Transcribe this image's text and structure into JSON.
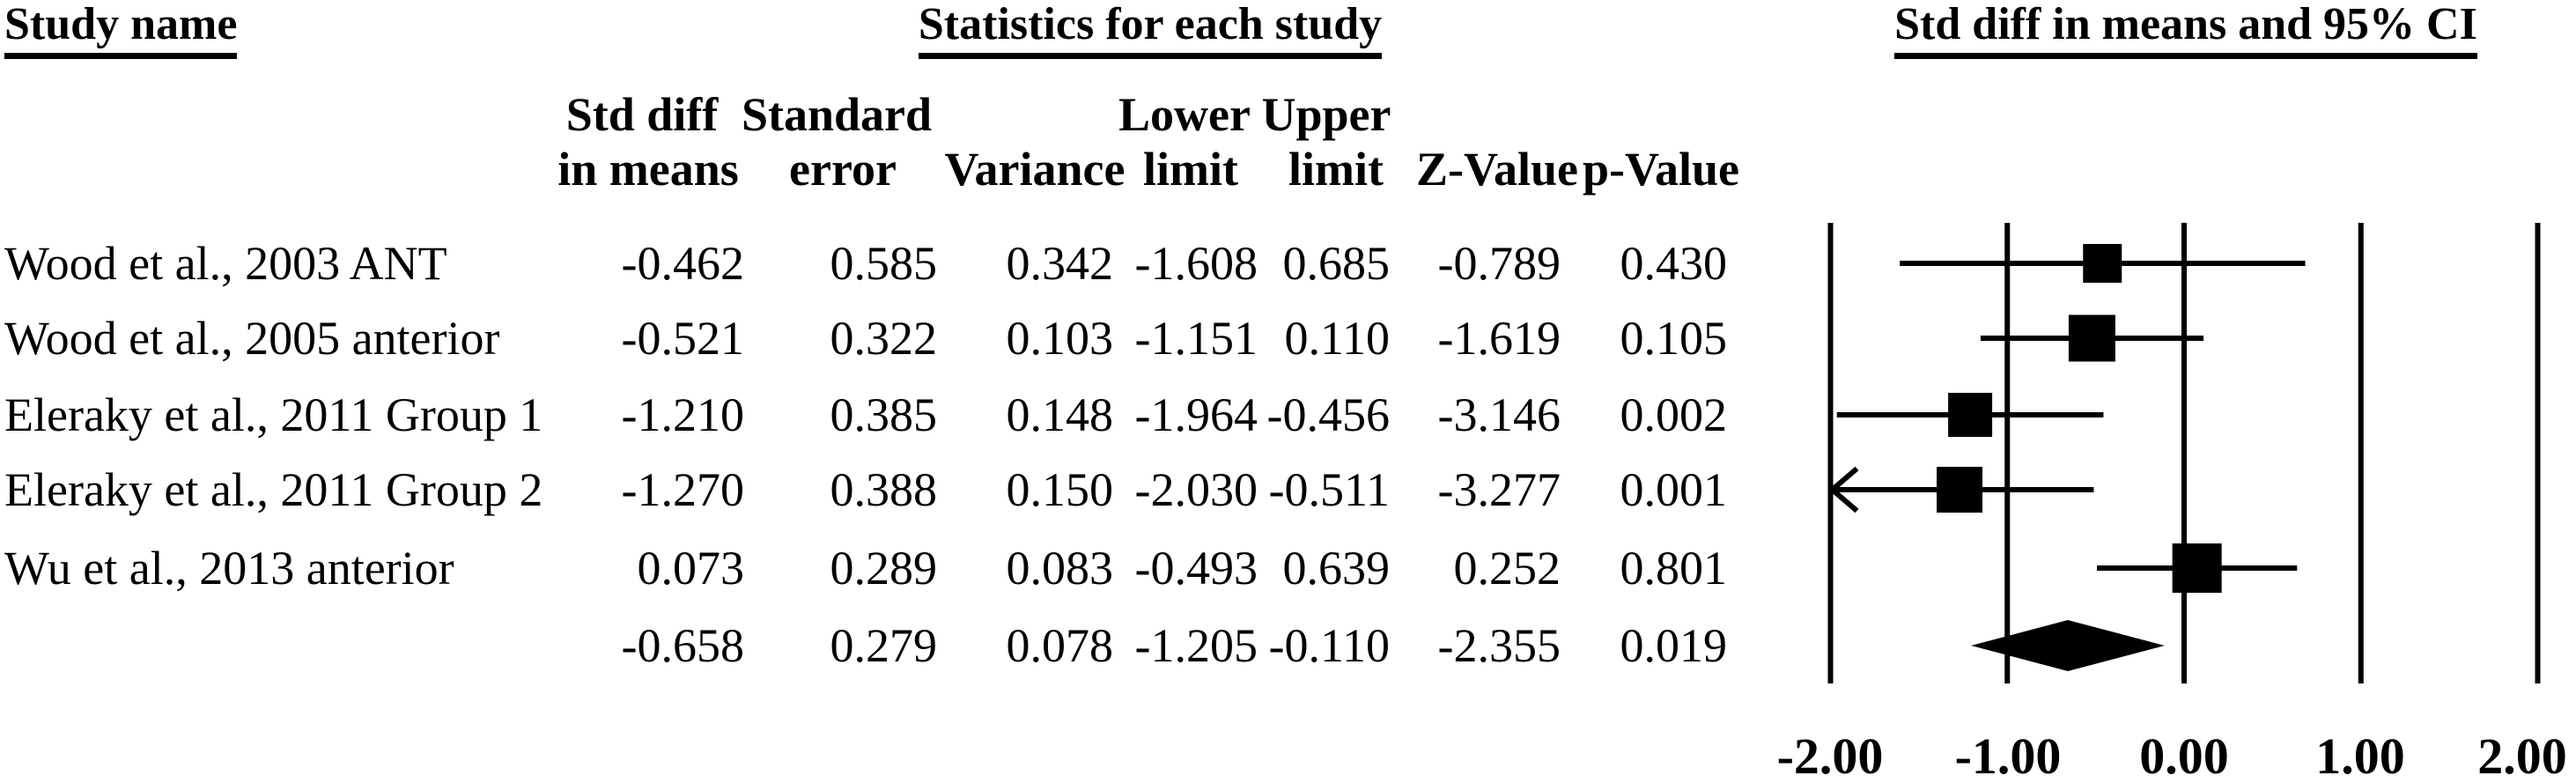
{
  "titles": {
    "study_name": "Study name",
    "statistics": "Statistics for each study",
    "ci_plot": "Std diff in means and 95% CI"
  },
  "table_headers": {
    "line1": [
      "Std diff",
      "Standard",
      "Lower",
      "Upper"
    ],
    "line2": [
      "in means",
      "error",
      "Variance",
      "limit",
      "limit",
      "Z-Value",
      "p-Value"
    ]
  },
  "chart_data": {
    "type": "forest",
    "title": "Std diff in means and 95% CI",
    "x_axis": {
      "min": -2.0,
      "max": 2.0,
      "tick_values": [
        -2,
        -1,
        0,
        1,
        2
      ],
      "tick_labels": [
        "-2.00",
        "-1.00",
        "0.00",
        "1.00",
        "2.00"
      ],
      "grid": true
    },
    "studies": [
      {
        "name": "Wood et al., 2003 ANT",
        "std_diff_in_means": "-0.462",
        "standard_error": "0.585",
        "variance": "0.342",
        "lower_limit": "-1.608",
        "upper_limit": "0.685",
        "z_value": "-0.789",
        "p_value": "0.430"
      },
      {
        "name": "Wood et al., 2005 anterior",
        "std_diff_in_means": "-0.521",
        "standard_error": "0.322",
        "variance": "0.103",
        "lower_limit": "-1.151",
        "upper_limit": "0.110",
        "z_value": "-1.619",
        "p_value": "0.105"
      },
      {
        "name": "Eleraky et al., 2011 Group 1",
        "std_diff_in_means": "-1.210",
        "standard_error": "0.385",
        "variance": "0.148",
        "lower_limit": "-1.964",
        "upper_limit": "-0.456",
        "z_value": "-3.146",
        "p_value": "0.002"
      },
      {
        "name": "Eleraky et al., 2011 Group 2",
        "std_diff_in_means": "-1.270",
        "standard_error": "0.388",
        "variance": "0.150",
        "lower_limit": "-2.030",
        "upper_limit": "-0.511",
        "z_value": "-3.277",
        "p_value": "0.001"
      },
      {
        "name": "Wu et al., 2013 anterior",
        "std_diff_in_means": "0.073",
        "standard_error": "0.289",
        "variance": "0.083",
        "lower_limit": "-0.493",
        "upper_limit": "0.639",
        "z_value": "0.252",
        "p_value": "0.801"
      }
    ],
    "pooled": {
      "name": "",
      "std_diff_in_means": "-0.658",
      "standard_error": "0.279",
      "variance": "0.078",
      "lower_limit": "-1.205",
      "upper_limit": "-0.110",
      "z_value": "-2.355",
      "p_value": "0.019"
    },
    "marker_sizes_px": [
      44,
      53,
      50,
      52,
      56
    ],
    "colors": {
      "foreground": "#000000",
      "background": "#ffffff"
    }
  }
}
